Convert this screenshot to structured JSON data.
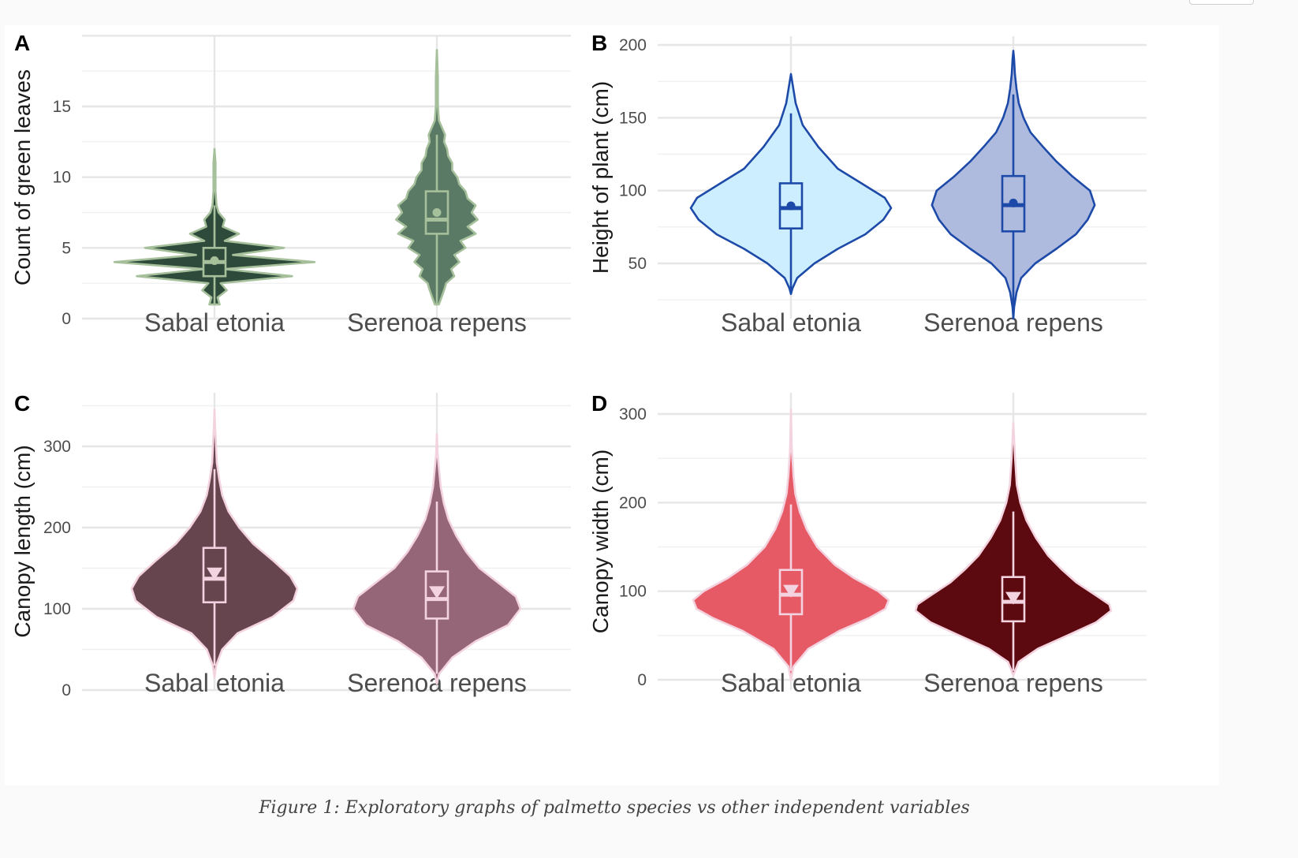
{
  "caption": "Figure 1: Exploratory graphs of palmetto species vs other independent variables",
  "chart_data": [
    {
      "panel": "A",
      "type": "violin",
      "ylabel": "Count of green leaves",
      "categories": [
        "Sabal etonia",
        "Serenoa repens"
      ],
      "ylim": [
        0,
        20
      ],
      "yticks": [
        0,
        5,
        10,
        15
      ],
      "colors": {
        "fill": [
          "#2e4a3a",
          "#5a7a65"
        ],
        "outline": "#a6c09b",
        "box": "#a6c09b",
        "mean": "#a6c09b"
      },
      "mean_marker": "circle",
      "series": [
        {
          "name": "Sabal etonia",
          "density": [
            [
              1,
              5
            ],
            [
              1.5,
              3
            ],
            [
              2,
              12
            ],
            [
              2.5,
              6
            ],
            [
              3,
              76
            ],
            [
              3.5,
              10
            ],
            [
              4,
              98
            ],
            [
              4.5,
              18
            ],
            [
              5,
              68
            ],
            [
              5.5,
              10
            ],
            [
              6,
              24
            ],
            [
              6.5,
              8
            ],
            [
              7,
              10
            ],
            [
              7.5,
              4
            ],
            [
              8,
              2
            ],
            [
              9,
              1
            ],
            [
              10,
              1
            ],
            [
              11,
              1
            ],
            [
              12,
              0
            ]
          ],
          "box": {
            "q1": 3,
            "median": 4,
            "q3": 5,
            "lower": 1,
            "upper": 8
          },
          "mean": 4.1,
          "min": 1,
          "max": 12
        },
        {
          "name": "Serenoa repens",
          "density": [
            [
              1,
              2
            ],
            [
              2,
              7
            ],
            [
              2.5,
              9
            ],
            [
              3,
              17
            ],
            [
              3.5,
              14
            ],
            [
              4,
              22
            ],
            [
              4.5,
              17
            ],
            [
              5,
              28
            ],
            [
              5.5,
              23
            ],
            [
              6,
              38
            ],
            [
              6.5,
              30
            ],
            [
              7,
              40
            ],
            [
              7.5,
              34
            ],
            [
              8,
              38
            ],
            [
              8.5,
              30
            ],
            [
              9,
              28
            ],
            [
              9.5,
              22
            ],
            [
              10,
              20
            ],
            [
              10.5,
              15
            ],
            [
              11,
              15
            ],
            [
              11.5,
              11
            ],
            [
              12,
              10
            ],
            [
              12.5,
              7
            ],
            [
              13,
              8
            ],
            [
              14,
              2
            ],
            [
              15,
              1
            ],
            [
              17,
              1
            ],
            [
              19,
              0
            ]
          ],
          "box": {
            "q1": 6,
            "median": 7,
            "q3": 9,
            "lower": 1,
            "upper": 13
          },
          "mean": 7.5,
          "min": 1,
          "max": 19
        }
      ]
    },
    {
      "panel": "B",
      "type": "violin",
      "ylabel": "Height of plant (cm)",
      "categories": [
        "Sabal etonia",
        "Serenoa repens"
      ],
      "ylim": [
        12,
        202
      ],
      "yticks": [
        50,
        100,
        150,
        200
      ],
      "colors": {
        "fill": [
          "#cdeeff",
          "#aebbdf"
        ],
        "outline": "#1d4aa8",
        "box": "#1d4aa8",
        "mean": "#1d4aa8"
      },
      "mean_marker": "circle",
      "series": [
        {
          "name": "Sabal etonia",
          "density": [
            [
              29,
              0
            ],
            [
              33,
              2
            ],
            [
              40,
              8
            ],
            [
              50,
              30
            ],
            [
              60,
              60
            ],
            [
              70,
              95
            ],
            [
              80,
              118
            ],
            [
              88,
              128
            ],
            [
              95,
              120
            ],
            [
              105,
              90
            ],
            [
              115,
              60
            ],
            [
              130,
              35
            ],
            [
              145,
              15
            ],
            [
              160,
              6
            ],
            [
              170,
              3
            ],
            [
              180,
              0
            ]
          ],
          "box": {
            "q1": 74,
            "median": 88,
            "q3": 105,
            "lower": 29,
            "upper": 153
          },
          "mean": 89.5,
          "min": 29,
          "max": 180
        },
        {
          "name": "Serenoa repens",
          "density": [
            [
              12,
              0
            ],
            [
              20,
              1
            ],
            [
              30,
              4
            ],
            [
              40,
              10
            ],
            [
              50,
              28
            ],
            [
              60,
              55
            ],
            [
              70,
              80
            ],
            [
              80,
              95
            ],
            [
              90,
              104
            ],
            [
              100,
              98
            ],
            [
              110,
              75
            ],
            [
              120,
              55
            ],
            [
              130,
              38
            ],
            [
              140,
              22
            ],
            [
              150,
              13
            ],
            [
              160,
              7
            ],
            [
              170,
              4
            ],
            [
              180,
              2
            ],
            [
              190,
              1
            ],
            [
              196,
              0
            ]
          ],
          "box": {
            "q1": 72,
            "median": 90,
            "q3": 110,
            "lower": 12,
            "upper": 166
          },
          "mean": 91.5,
          "min": 12,
          "max": 196
        }
      ]
    },
    {
      "panel": "C",
      "type": "violin",
      "ylabel": "Canopy length (cm)",
      "categories": [
        "Sabal etonia",
        "Serenoa repens"
      ],
      "ylim": [
        0,
        360
      ],
      "yticks": [
        0,
        100,
        200,
        300
      ],
      "colors": {
        "fill": [
          "#66454f",
          "#956677"
        ],
        "outline": "#f3d3df",
        "box": "#f3d3df",
        "mean": "#f3d3df"
      },
      "mean_marker": "triangle",
      "series": [
        {
          "name": "Sabal etonia",
          "density": [
            [
              15,
              0
            ],
            [
              30,
              2
            ],
            [
              50,
              10
            ],
            [
              70,
              30
            ],
            [
              90,
              75
            ],
            [
              110,
              102
            ],
            [
              125,
              107
            ],
            [
              140,
              98
            ],
            [
              160,
              75
            ],
            [
              180,
              50
            ],
            [
              200,
              32
            ],
            [
              220,
              18
            ],
            [
              240,
              10
            ],
            [
              260,
              6
            ],
            [
              280,
              3
            ],
            [
              300,
              2
            ],
            [
              320,
              1
            ],
            [
              345,
              0
            ]
          ],
          "box": {
            "q1": 108,
            "median": 137,
            "q3": 175,
            "lower": 30,
            "upper": 272
          },
          "mean": 143,
          "min": 15,
          "max": 345
        },
        {
          "name": "Serenoa repens",
          "density": [
            [
              8,
              0
            ],
            [
              20,
              3
            ],
            [
              40,
              20
            ],
            [
              60,
              50
            ],
            [
              80,
              92
            ],
            [
              100,
              108
            ],
            [
              115,
              102
            ],
            [
              130,
              82
            ],
            [
              150,
              55
            ],
            [
              170,
              38
            ],
            [
              190,
              25
            ],
            [
              210,
              15
            ],
            [
              230,
              9
            ],
            [
              250,
              5
            ],
            [
              270,
              3
            ],
            [
              290,
              1
            ],
            [
              315,
              0
            ]
          ],
          "box": {
            "q1": 88,
            "median": 112,
            "q3": 146,
            "lower": 20,
            "upper": 232
          },
          "mean": 120,
          "min": 8,
          "max": 315
        }
      ]
    },
    {
      "panel": "D",
      "type": "violin",
      "ylabel": "Canopy width (cm)",
      "categories": [
        "Sabal etonia",
        "Serenoa repens"
      ],
      "ylim": [
        0,
        320
      ],
      "yticks": [
        0,
        100,
        200,
        300
      ],
      "colors": {
        "fill": [
          "#e65a66",
          "#5c0a0f"
        ],
        "outline": "#f3d3df",
        "box": "#f3d3df",
        "mean": "#f3d3df"
      },
      "mean_marker": "triangle",
      "series": [
        {
          "name": "Sabal etonia",
          "density": [
            [
              0,
              0
            ],
            [
              15,
              3
            ],
            [
              35,
              20
            ],
            [
              55,
              55
            ],
            [
              70,
              90
            ],
            [
              80,
              108
            ],
            [
              90,
              112
            ],
            [
              100,
              100
            ],
            [
              115,
              72
            ],
            [
              130,
              50
            ],
            [
              150,
              30
            ],
            [
              170,
              18
            ],
            [
              190,
              10
            ],
            [
              210,
              5
            ],
            [
              230,
              3
            ],
            [
              260,
              1
            ],
            [
              305,
              0
            ]
          ],
          "box": {
            "q1": 74,
            "median": 96,
            "q3": 124,
            "lower": 10,
            "upper": 198
          },
          "mean": 100,
          "min": 0,
          "max": 305
        },
        {
          "name": "Serenoa repens",
          "density": [
            [
              5,
              0
            ],
            [
              20,
              6
            ],
            [
              35,
              28
            ],
            [
              50,
              62
            ],
            [
              65,
              95
            ],
            [
              78,
              112
            ],
            [
              85,
              110
            ],
            [
              95,
              95
            ],
            [
              110,
              72
            ],
            [
              125,
              55
            ],
            [
              140,
              40
            ],
            [
              160,
              26
            ],
            [
              180,
              15
            ],
            [
              200,
              8
            ],
            [
              220,
              4
            ],
            [
              250,
              2
            ],
            [
              290,
              0
            ]
          ],
          "box": {
            "q1": 66,
            "median": 88,
            "q3": 116,
            "lower": 10,
            "upper": 190
          },
          "mean": 92,
          "min": 5,
          "max": 290
        }
      ]
    }
  ]
}
